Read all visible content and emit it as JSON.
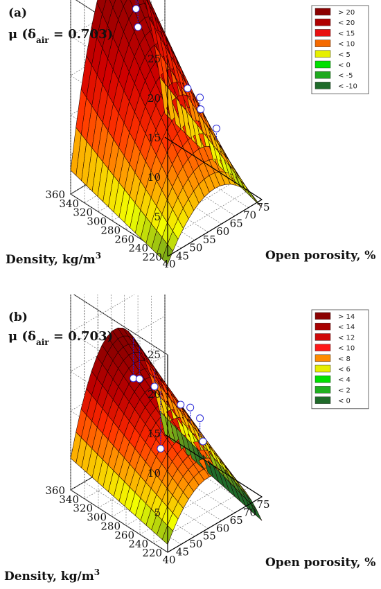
{
  "chart_data": [
    {
      "type": "surface3d",
      "panel_label": "(a)",
      "zlabel_prefix": "μ (δ",
      "zlabel_sub": "air",
      "zlabel_suffix": " = 0.703)",
      "xlabel": "Open porosity, %",
      "ylabel": "Density, kg/m",
      "ylabel_sup": "3",
      "x_ticks": [
        "40",
        "45",
        "50",
        "55",
        "60",
        "65",
        "70",
        "75"
      ],
      "y_ticks": [
        "220",
        "240",
        "260",
        "280",
        "300",
        "320",
        "340",
        "360"
      ],
      "z_ticks": [
        "5",
        "10",
        "15",
        "20",
        "25"
      ],
      "xlim": [
        40,
        75
      ],
      "ylim": [
        220,
        360
      ],
      "zlim": [
        0,
        25
      ],
      "legend": [
        {
          "label": "> 20",
          "color": "#8b0000"
        },
        {
          "label": "< 20",
          "color": "#b00000"
        },
        {
          "label": "< 15",
          "color": "#e81010"
        },
        {
          "label": "< 10",
          "color": "#f56a00"
        },
        {
          "label": "< 5",
          "color": "#e6f000"
        },
        {
          "label": "< 0",
          "color": "#00e000"
        },
        {
          "label": "< -5",
          "color": "#1faa1f"
        },
        {
          "label": "< -10",
          "color": "#1f6b2a"
        }
      ],
      "observations": [
        {
          "x": 65,
          "y": 360,
          "z": 16
        },
        {
          "x": 64,
          "y": 358,
          "z": 22
        },
        {
          "x": 63,
          "y": 355,
          "z": 19
        },
        {
          "x": 68,
          "y": 300,
          "z": 11
        },
        {
          "x": 70,
          "y": 290,
          "z": 10
        },
        {
          "x": 71,
          "y": 270,
          "z": 7
        },
        {
          "x": 69,
          "y": 285,
          "z": 9
        }
      ]
    },
    {
      "type": "surface3d",
      "panel_label": "(b)",
      "zlabel_prefix": "μ (δ",
      "zlabel_sub": "air",
      "zlabel_suffix": " = 0.703)",
      "xlabel": "Open porosity, %",
      "ylabel": "Density, kg/m",
      "ylabel_sup": "3",
      "x_ticks": [
        "40",
        "45",
        "50",
        "55",
        "60",
        "65",
        "70",
        "75"
      ],
      "y_ticks": [
        "220",
        "240",
        "260",
        "280",
        "300",
        "320",
        "340",
        "360"
      ],
      "z_ticks": [
        "5",
        "10",
        "15",
        "20",
        "25"
      ],
      "xlim": [
        40,
        75
      ],
      "ylim": [
        220,
        360
      ],
      "zlim": [
        0,
        25
      ],
      "legend": [
        {
          "label": "> 14",
          "color": "#8b0000"
        },
        {
          "label": "< 14",
          "color": "#a80000"
        },
        {
          "label": "< 12",
          "color": "#cf0a0a"
        },
        {
          "label": "< 10",
          "color": "#ff1a1a"
        },
        {
          "label": "< 8",
          "color": "#ff8c00"
        },
        {
          "label": "< 6",
          "color": "#e6ee00"
        },
        {
          "label": "< 4",
          "color": "#00e000"
        },
        {
          "label": "< 2",
          "color": "#20b020"
        },
        {
          "label": "< 0",
          "color": "#1f6b2a"
        }
      ],
      "observations": [
        {
          "x": 62,
          "y": 355,
          "z": 10
        },
        {
          "x": 63,
          "y": 350,
          "z": 10
        },
        {
          "x": 66,
          "y": 340,
          "z": 9
        },
        {
          "x": 68,
          "y": 310,
          "z": 8
        },
        {
          "x": 69,
          "y": 300,
          "z": 8
        },
        {
          "x": 70,
          "y": 290,
          "z": 7
        },
        {
          "x": 66,
          "y": 270,
          "z": 6
        },
        {
          "x": 58,
          "y": 300,
          "z": 5
        }
      ]
    }
  ]
}
